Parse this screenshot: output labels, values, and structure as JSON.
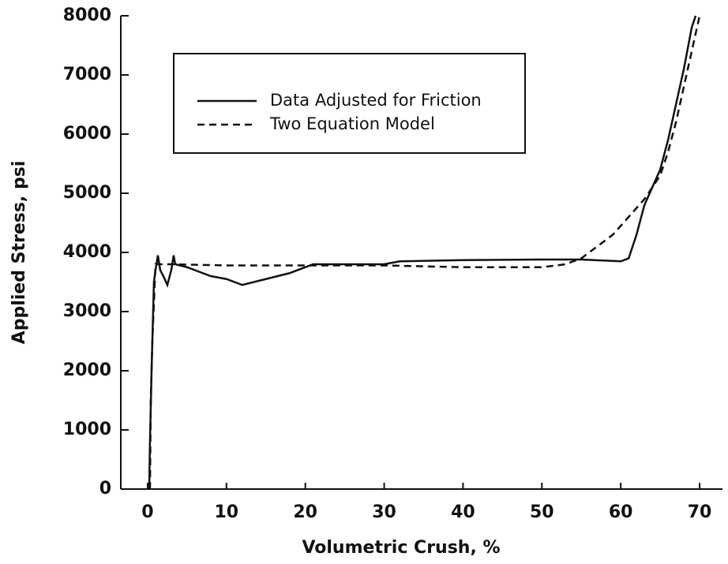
{
  "chart_data": {
    "type": "line",
    "xlabel": "Volumetric Crush, %",
    "ylabel": "Applied Stress, psi",
    "xlim": [
      -3.4,
      72.9
    ],
    "ylim": [
      0,
      8000
    ],
    "xticks": [
      0,
      10,
      20,
      30,
      40,
      50,
      60,
      70
    ],
    "yticks": [
      0,
      1000,
      2000,
      3000,
      4000,
      5000,
      6000,
      7000,
      8000
    ],
    "series": [
      {
        "name": "Data Adjusted for Friction",
        "color": "#111111",
        "style": "solid",
        "x": [
          0.2,
          0.3,
          0.5,
          0.8,
          1.0,
          1.3,
          1.6,
          2.0,
          2.5,
          3.0,
          3.3,
          3.5,
          5,
          8,
          10,
          12,
          15,
          18,
          21,
          25,
          30,
          32,
          40,
          50,
          55,
          60,
          61,
          62,
          63,
          64,
          65,
          66,
          67,
          68,
          69,
          69.5
        ],
        "values": [
          0,
          800,
          2000,
          3500,
          3700,
          3950,
          3700,
          3600,
          3450,
          3700,
          3950,
          3800,
          3750,
          3600,
          3550,
          3450,
          3550,
          3650,
          3800,
          3800,
          3800,
          3850,
          3870,
          3880,
          3880,
          3850,
          3900,
          4300,
          4800,
          5100,
          5400,
          5900,
          6500,
          7100,
          7800,
          8000
        ]
      },
      {
        "name": "Two Equation Model",
        "color": "#111111",
        "style": "dashed",
        "x": [
          0.3,
          0.4,
          0.6,
          1.0,
          3,
          10,
          20,
          30,
          40,
          50,
          53,
          55,
          57,
          59,
          61,
          63,
          65,
          66,
          67,
          68,
          69,
          70
        ],
        "values": [
          0,
          1500,
          2500,
          3800,
          3800,
          3780,
          3780,
          3780,
          3750,
          3750,
          3800,
          3900,
          4100,
          4300,
          4600,
          4900,
          5300,
          5700,
          6200,
          6800,
          7400,
          8000
        ]
      }
    ]
  }
}
